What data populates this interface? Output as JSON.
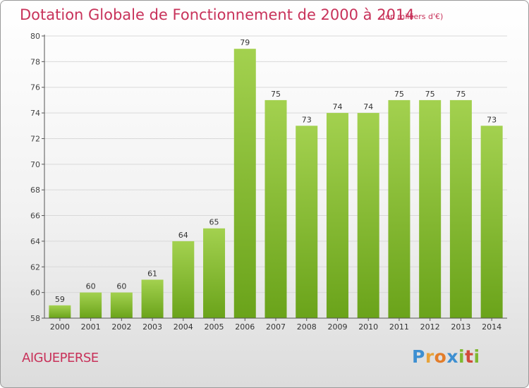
{
  "header": {
    "title": "Dotation Globale de Fonctionnement de 2000 à 2014",
    "unit": "(en milliers d'€)"
  },
  "footer": {
    "commune": "AIGUEPERSE",
    "logo": {
      "letters": [
        "P",
        "r",
        "o",
        "x",
        "i",
        "t",
        "i"
      ],
      "colors": [
        "#3d8fd1",
        "#e8a33a",
        "#e37d2a",
        "#3d8fd1",
        "#7fb830",
        "#d14a3a",
        "#7fb830"
      ]
    }
  },
  "chart_data": {
    "type": "bar",
    "categories": [
      "2000",
      "2001",
      "2002",
      "2003",
      "2004",
      "2005",
      "2006",
      "2007",
      "2008",
      "2009",
      "2010",
      "2011",
      "2012",
      "2013",
      "2014"
    ],
    "values": [
      59,
      60,
      60,
      61,
      64,
      65,
      79,
      75,
      73,
      74,
      74,
      75,
      75,
      75,
      73
    ],
    "data_labels": [
      "59",
      "60",
      "60",
      "61",
      "64",
      "65",
      "79",
      "75",
      "73",
      "74",
      "74",
      "75",
      "75",
      "75",
      "73"
    ],
    "title": "Dotation Globale de Fonctionnement de 2000 à 2014",
    "ylim": [
      58,
      80
    ],
    "yticks": [
      58,
      60,
      62,
      64,
      66,
      68,
      70,
      72,
      74,
      76,
      78,
      80
    ],
    "grid": true,
    "bar_color_light": "#a3d14f",
    "bar_color_dark": "#6aa31a",
    "text_color": "#c8325a"
  }
}
